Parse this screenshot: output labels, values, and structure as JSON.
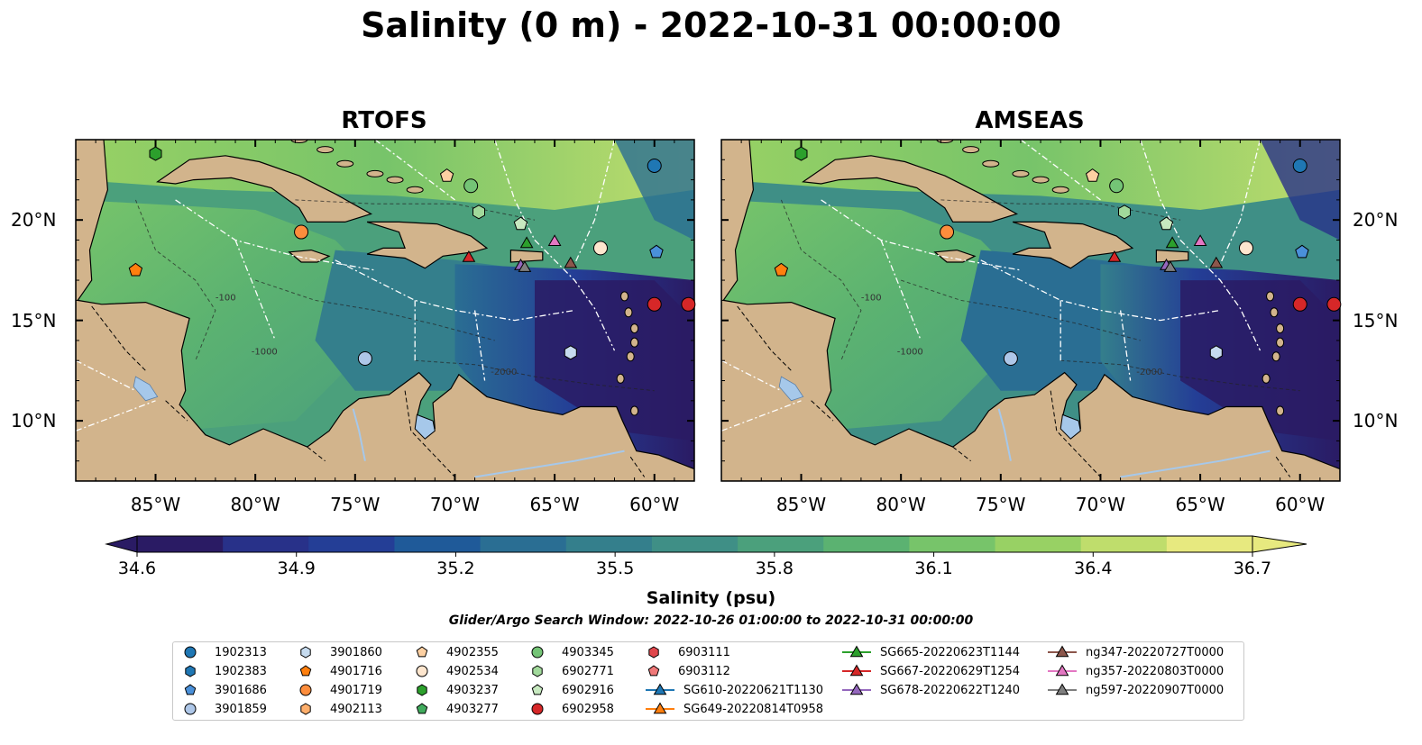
{
  "title": "Salinity (0 m) - 2022-10-31 00:00:00",
  "panels": [
    {
      "id": "rtofs",
      "title": "RTOFS"
    },
    {
      "id": "amseas",
      "title": "AMSEAS"
    }
  ],
  "axes": {
    "lon_ticks": [
      "85°W",
      "80°W",
      "75°W",
      "70°W",
      "65°W",
      "60°W"
    ],
    "lat_ticks": [
      "20°N",
      "15°N",
      "10°N"
    ],
    "lon_range": [
      -89,
      -58
    ],
    "lat_range": [
      7,
      24
    ]
  },
  "contour_labels": [
    "-100",
    "-1000",
    "-2000"
  ],
  "colorbar": {
    "label": "Salinity (psu)",
    "ticks": [
      "34.6",
      "34.9",
      "35.2",
      "35.5",
      "35.8",
      "36.1",
      "36.4",
      "36.7"
    ],
    "range": [
      34.6,
      36.7
    ],
    "extend": "both",
    "colors": [
      "#2a1b64",
      "#283189",
      "#243e96",
      "#1f5a99",
      "#2a6e93",
      "#347f8c",
      "#3f8f86",
      "#4ba07c",
      "#5bb271",
      "#77c46a",
      "#98d164",
      "#bfdd6c",
      "#e7e97f"
    ]
  },
  "search_window": "Glider/Argo Search Window: 2022-10-26 01:00:00 to 2022-10-31 00:00:00",
  "colors": {
    "land": "#d2b48c",
    "lake": "#a6c8ea",
    "ocean_masked": "#97b8e3"
  },
  "legend": [
    {
      "label": "1902313",
      "marker": "circle",
      "color": "#1f77b4"
    },
    {
      "label": "1902383",
      "marker": "hexagon",
      "color": "#1f77b4"
    },
    {
      "label": "3901686",
      "marker": "pentagon",
      "color": "#4a90d9"
    },
    {
      "label": "3901859",
      "marker": "circle",
      "color": "#aec7e8"
    },
    {
      "label": "3901860",
      "marker": "hexagon",
      "color": "#c6dbef"
    },
    {
      "label": "4901716",
      "marker": "pentagon",
      "color": "#ff7f0e"
    },
    {
      "label": "4901719",
      "marker": "circle",
      "color": "#fd8d3c"
    },
    {
      "label": "4902113",
      "marker": "hexagon",
      "color": "#fdae6b"
    },
    {
      "label": "4902355",
      "marker": "pentagon",
      "color": "#fdd0a2"
    },
    {
      "label": "4902534",
      "marker": "circle",
      "color": "#fee6ce"
    },
    {
      "label": "4903237",
      "marker": "hexagon",
      "color": "#2ca02c"
    },
    {
      "label": "4903277",
      "marker": "pentagon",
      "color": "#41ab5d"
    },
    {
      "label": "4903345",
      "marker": "circle",
      "color": "#74c476"
    },
    {
      "label": "6902771",
      "marker": "hexagon",
      "color": "#a1d99b"
    },
    {
      "label": "6902916",
      "marker": "pentagon",
      "color": "#c7e9c0"
    },
    {
      "label": "6902958",
      "marker": "circle",
      "color": "#d62728"
    },
    {
      "label": "6903111",
      "marker": "hexagon",
      "color": "#e0474c"
    },
    {
      "label": "6903112",
      "marker": "pentagon",
      "color": "#f07878"
    },
    {
      "label": "SG610-20220621T1130",
      "marker": "triangle-line",
      "color": "#1f77b4"
    },
    {
      "label": "SG649-20220814T0958",
      "marker": "triangle-line",
      "color": "#ff7f0e"
    },
    {
      "label": "SG665-20220623T1144",
      "marker": "triangle-line",
      "color": "#2ca02c"
    },
    {
      "label": "SG667-20220629T1254",
      "marker": "triangle-line",
      "color": "#d62728"
    },
    {
      "label": "SG678-20220622T1240",
      "marker": "triangle-line",
      "color": "#9467bd"
    },
    {
      "label": "ng347-20220727T0000",
      "marker": "triangle-line",
      "color": "#8c564b"
    },
    {
      "label": "ng357-20220803T0000",
      "marker": "triangle-line",
      "color": "#e377c2"
    },
    {
      "label": "ng597-20220907T0000",
      "marker": "triangle-line",
      "color": "#7f7f7f"
    }
  ],
  "platforms": [
    {
      "name": "1902313",
      "lon": -60.0,
      "lat": 22.7
    },
    {
      "name": "4903237",
      "lon": -85.0,
      "lat": 23.3
    },
    {
      "name": "4902355",
      "lon": -70.4,
      "lat": 22.2
    },
    {
      "name": "4903345",
      "lon": -69.2,
      "lat": 21.7
    },
    {
      "name": "6902771",
      "lon": -68.8,
      "lat": 20.4
    },
    {
      "name": "6902916",
      "lon": -66.7,
      "lat": 19.8
    },
    {
      "name": "4901719",
      "lon": -77.7,
      "lat": 19.4
    },
    {
      "name": "3901686",
      "lon": -59.9,
      "lat": 18.4
    },
    {
      "name": "4901716",
      "lon": -86.0,
      "lat": 17.5
    },
    {
      "name": "4902534",
      "lon": -62.7,
      "lat": 18.6
    },
    {
      "name": "6902958",
      "lon": -60.0,
      "lat": 15.8
    },
    {
      "name": "6902958",
      "lon": -58.3,
      "lat": 15.8
    },
    {
      "name": "3901859",
      "lon": -74.5,
      "lat": 13.1
    },
    {
      "name": "3901860",
      "lon": -64.2,
      "lat": 13.4
    },
    {
      "name": "SG665-20220623T1144",
      "lon": -66.4,
      "lat": 18.8
    },
    {
      "name": "SG667-20220629T1254",
      "lon": -69.3,
      "lat": 18.1
    },
    {
      "name": "SG678-20220622T1240",
      "lon": -66.7,
      "lat": 17.7
    },
    {
      "name": "ng347-20220727T0000",
      "lon": -64.2,
      "lat": 17.8
    },
    {
      "name": "ng357-20220803T0000",
      "lon": -65.0,
      "lat": 18.9
    },
    {
      "name": "ng597-20220907T0000",
      "lon": -66.5,
      "lat": 17.6
    }
  ]
}
